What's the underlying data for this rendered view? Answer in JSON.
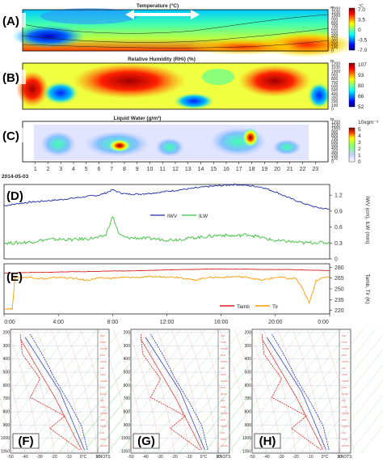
{
  "chart_data": [
    {
      "type": "heatmap",
      "panel_label": "(A)",
      "title": "Temperature (°C)",
      "y_unit": "m",
      "yticks": [
        "1200",
        "1100",
        "1000",
        "900",
        "800",
        "700",
        "600",
        "500",
        "400",
        "300",
        "200",
        "100",
        "0"
      ],
      "colorbar_unit": "°C",
      "colorbar_ticks": [
        "7.0",
        "3.5",
        "0",
        "-3.5",
        "-7.0"
      ]
    },
    {
      "type": "heatmap",
      "panel_label": "(B)",
      "title": "Relative Humidity (RHi) (%)",
      "y_unit": "m",
      "yticks": [
        "1200",
        "1100",
        "1000",
        "900",
        "800",
        "700",
        "600",
        "500",
        "400",
        "300",
        "200",
        "100",
        "0"
      ],
      "colorbar_ticks": [
        "107",
        "93",
        "80",
        "66",
        "52"
      ]
    },
    {
      "type": "heatmap",
      "panel_label": "(C)",
      "title": "Liquid Water (g/m³)",
      "y_unit": "m",
      "yticks": [
        "1200",
        "1100",
        "1000",
        "900",
        "800",
        "700",
        "600",
        "500",
        "400",
        "300",
        "200",
        "100",
        "0"
      ],
      "colorbar_unit": "10xgm⁻³",
      "colorbar_ticks": [
        "5",
        "4",
        "3",
        "2",
        "1",
        "0"
      ],
      "date_label": "2014-05-03",
      "xticks": [
        "1",
        "2",
        "3",
        "4",
        "5",
        "6",
        "7",
        "8",
        "9",
        "10",
        "11",
        "12",
        "13",
        "14",
        "15",
        "16",
        "17",
        "18",
        "19",
        "20",
        "21",
        "22",
        "23"
      ]
    },
    {
      "type": "line",
      "panel_label": "(D)",
      "ylabel": "IWV (cm), ILW (mm)",
      "yticks": [
        "1.2",
        "0.9",
        "0.6",
        "0.3",
        "0"
      ],
      "ylim": [
        0,
        1.4
      ],
      "x": [
        0,
        1,
        2,
        3,
        4,
        5,
        6,
        7,
        7.5,
        8,
        8.5,
        9,
        10,
        11,
        12,
        13,
        14,
        15,
        16,
        17,
        18,
        19,
        20,
        21,
        22,
        23,
        24
      ],
      "series": [
        {
          "name": "IWV",
          "color": "#1f2ea8",
          "values": [
            1.0,
            1.04,
            1.07,
            1.09,
            1.11,
            1.14,
            1.17,
            1.2,
            1.24,
            1.3,
            1.25,
            1.22,
            1.22,
            1.24,
            1.27,
            1.3,
            1.33,
            1.36,
            1.38,
            1.4,
            1.38,
            1.35,
            1.26,
            1.15,
            1.05,
            0.97,
            0.93
          ]
        },
        {
          "name": "ILW",
          "color": "#39c23a",
          "values": [
            0.3,
            0.3,
            0.32,
            0.36,
            0.37,
            0.36,
            0.38,
            0.4,
            0.45,
            0.8,
            0.45,
            0.4,
            0.39,
            0.38,
            0.36,
            0.37,
            0.4,
            0.42,
            0.45,
            0.43,
            0.46,
            0.4,
            0.34,
            0.33,
            0.3,
            0.31,
            0.3
          ]
        }
      ]
    },
    {
      "type": "line",
      "panel_label": "(E)",
      "ylabel": "Tamb, Tir (K)",
      "yticks": [
        "280",
        "265",
        "250",
        "235",
        "220"
      ],
      "ylim": [
        215,
        285
      ],
      "xticks": [
        "0:00",
        "4:00",
        "8:00",
        "12:00",
        "16:00",
        "20:00",
        "0:00"
      ],
      "x": [
        0,
        0.6,
        0.8,
        1,
        2,
        3,
        4,
        5,
        6,
        7,
        8,
        9,
        10,
        11,
        12,
        13,
        14,
        15,
        16,
        17,
        18,
        19,
        20,
        20.5,
        21,
        21.5,
        22,
        22.5,
        23,
        24
      ],
      "series": [
        {
          "name": "Tamb",
          "color": "#d81e1e",
          "values": [
            272,
            272,
            272,
            272.5,
            273,
            273,
            273.5,
            274,
            274,
            274.5,
            275,
            275,
            275.5,
            276,
            276.5,
            277,
            277,
            277.5,
            277.5,
            277.5,
            277.5,
            277,
            277,
            277,
            277,
            276.5,
            276.5,
            276,
            276,
            275.5
          ]
        },
        {
          "name": "Tir",
          "color": "#ff9a00",
          "values": [
            222,
            222,
            266,
            266,
            266,
            264,
            266,
            265,
            262,
            265,
            265,
            266,
            266,
            267,
            267,
            266,
            262,
            266,
            266,
            267,
            266,
            262,
            266,
            266,
            264,
            265,
            250,
            230,
            262,
            268
          ]
        }
      ]
    },
    {
      "type": "line",
      "panel_label": "(F)",
      "yticks": [
        "200",
        "300",
        "400",
        "500",
        "600",
        "700",
        "800",
        "900",
        "1000",
        "1050"
      ],
      "xticks": [
        "-50",
        "-40",
        "-30",
        "-20",
        "-10",
        "0°C",
        "10"
      ],
      "right_label": "KNOTS"
    },
    {
      "type": "line",
      "panel_label": "(G)",
      "yticks": [
        "200",
        "300",
        "400",
        "500",
        "600",
        "700",
        "800",
        "900",
        "1000",
        "1050"
      ],
      "xticks": [
        "-50",
        "-40",
        "-30",
        "-20",
        "-10",
        "0°C",
        "10"
      ],
      "right_label": "KNOTS"
    },
    {
      "type": "line",
      "panel_label": "(H)",
      "yticks": [
        "200",
        "300",
        "400",
        "500",
        "600",
        "700",
        "800",
        "900",
        "1000",
        "1050"
      ],
      "xticks": [
        "-50",
        "-40",
        "-30",
        "-20",
        "-10",
        "0°C",
        "10"
      ],
      "right_label": "KNOTS"
    }
  ],
  "colors": {
    "jet": [
      "#00007f",
      "#0000ff",
      "#007fff",
      "#00ffff",
      "#7fff7f",
      "#ffff00",
      "#ff7f00",
      "#ff0000",
      "#7f0000"
    ]
  }
}
